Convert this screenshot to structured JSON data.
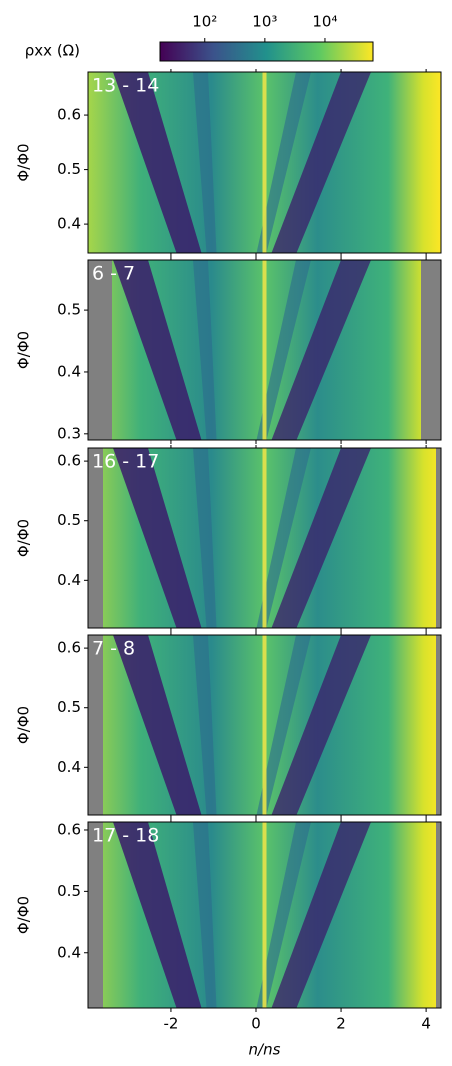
{
  "colorbar": {
    "label": "ρxx (Ω)",
    "log": true,
    "lim": [
      18,
      63000
    ],
    "ticks": [
      {
        "value": 100,
        "label": "10²"
      },
      {
        "value": 1000,
        "label": "10³"
      },
      {
        "value": 10000,
        "label": "10⁴"
      }
    ]
  },
  "chart_data": [
    {
      "type": "heatmap",
      "title": "13 - 14",
      "ylabel": "Φ/Φ0",
      "xlim": [
        -3.95,
        4.35
      ],
      "xticks": [
        -2,
        0,
        2,
        4
      ],
      "ylim": [
        0.347,
        0.679
      ],
      "yticks": [
        0.4,
        0.5,
        0.6
      ]
    },
    {
      "type": "heatmap",
      "title": "6 - 7",
      "ylabel": "Φ/Φ0",
      "xlim": [
        -3.95,
        4.35
      ],
      "xticks": [
        -2,
        0,
        2,
        4
      ],
      "ylim": [
        0.29,
        0.581
      ],
      "yticks": [
        0.3,
        0.4,
        0.5
      ]
    },
    {
      "type": "heatmap",
      "title": "16 - 17",
      "ylabel": "Φ/Φ0",
      "xlim": [
        -3.95,
        4.35
      ],
      "xticks": [
        -2,
        0,
        2,
        4
      ],
      "ylim": [
        0.32,
        0.622
      ],
      "yticks": [
        0.4,
        0.5,
        0.6
      ]
    },
    {
      "type": "heatmap",
      "title": "7 - 8",
      "ylabel": "Φ/Φ0",
      "xlim": [
        -3.95,
        4.35
      ],
      "xticks": [
        -2,
        0,
        2,
        4
      ],
      "ylim": [
        0.32,
        0.622
      ],
      "yticks": [
        0.4,
        0.5,
        0.6
      ]
    },
    {
      "type": "heatmap",
      "title": "17 - 18",
      "ylabel": "Φ/Φ0",
      "xlabel": "n/ns",
      "xlim": [
        -3.95,
        4.35
      ],
      "xticks": [
        -2,
        0,
        2,
        4
      ],
      "ylim": [
        0.31,
        0.613
      ],
      "yticks": [
        0.4,
        0.5,
        0.6
      ]
    }
  ]
}
